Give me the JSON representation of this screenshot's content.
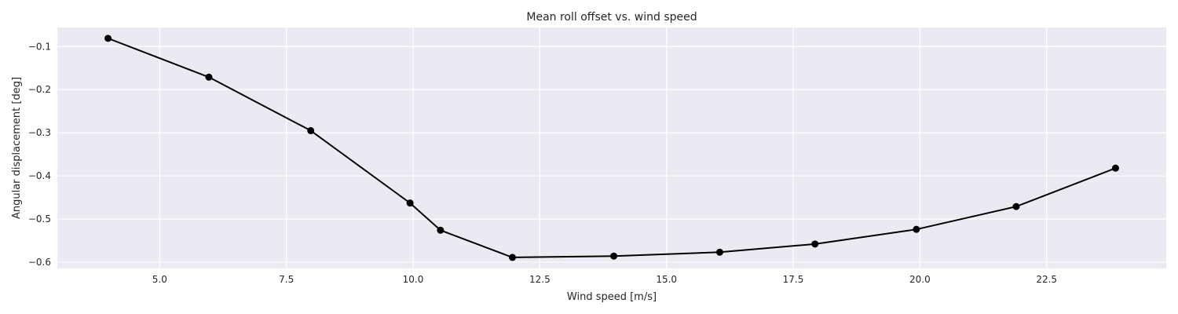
{
  "chart_data": {
    "type": "line",
    "title": "Mean roll offset vs. wind speed",
    "xlabel": "Wind speed [m/s]",
    "ylabel": "Angular displacement [deg]",
    "xlim": [
      2.98,
      24.86
    ],
    "ylim": [
      -0.6147,
      -0.0558
    ],
    "xticks": [
      5.0,
      7.5,
      10.0,
      12.5,
      15.0,
      17.5,
      20.0,
      22.5
    ],
    "xtick_labels": [
      "5.0",
      "7.5",
      "10.0",
      "12.5",
      "15.0",
      "17.5",
      "20.0",
      "22.5"
    ],
    "yticks": [
      -0.1,
      -0.2,
      -0.3,
      -0.4,
      -0.5,
      -0.6
    ],
    "ytick_labels": [
      "−0.1",
      "−0.2",
      "−0.3",
      "−0.4",
      "−0.5",
      "−0.6"
    ],
    "grid": true,
    "background": "#eaeaf2",
    "grid_color": "#ffffff",
    "line_color": "#000000",
    "series": [
      {
        "x": [
          3.98,
          5.97,
          7.98,
          9.94,
          10.54,
          11.96,
          13.96,
          16.05,
          17.93,
          19.93,
          21.9,
          23.86
        ],
        "values": [
          -0.081,
          -0.171,
          -0.295,
          -0.463,
          -0.526,
          -0.589,
          -0.586,
          -0.577,
          -0.558,
          -0.524,
          -0.471,
          -0.382
        ]
      }
    ]
  }
}
